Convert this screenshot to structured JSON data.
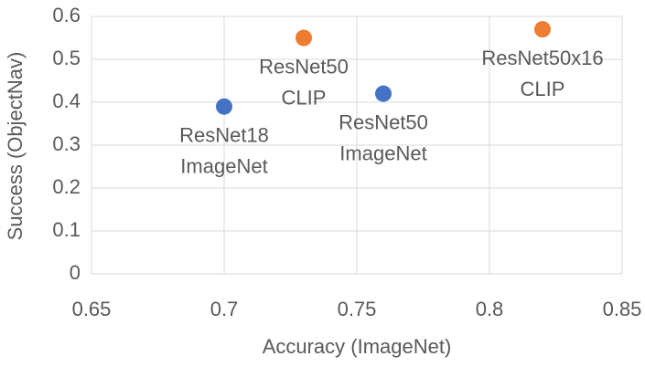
{
  "chart_data": {
    "type": "scatter",
    "x_label": "Accuracy (ImageNet)",
    "y_label": "Success (ObjectNav)",
    "xlim": [
      0.65,
      0.85
    ],
    "xticks": [
      0.65,
      0.7,
      0.75,
      0.8,
      0.85
    ],
    "ylim": [
      0,
      0.6
    ],
    "yticks": [
      0,
      0.1,
      0.2,
      0.3,
      0.4,
      0.5,
      0.6
    ],
    "grid": true,
    "series": [
      {
        "color": "#4472c4",
        "x": [
          0.7,
          0.76
        ],
        "values": [
          0.39,
          0.42
        ],
        "point_labels": [
          [
            "ResNet18",
            "ImageNet"
          ],
          [
            "ResNet50",
            "ImageNet"
          ]
        ]
      },
      {
        "color": "#ed7d31",
        "x": [
          0.73,
          0.82
        ],
        "values": [
          0.55,
          0.57
        ],
        "point_labels": [
          [
            "ResNet50",
            "CLIP"
          ],
          [
            "ResNet50x16",
            "CLIP"
          ]
        ]
      }
    ]
  }
}
